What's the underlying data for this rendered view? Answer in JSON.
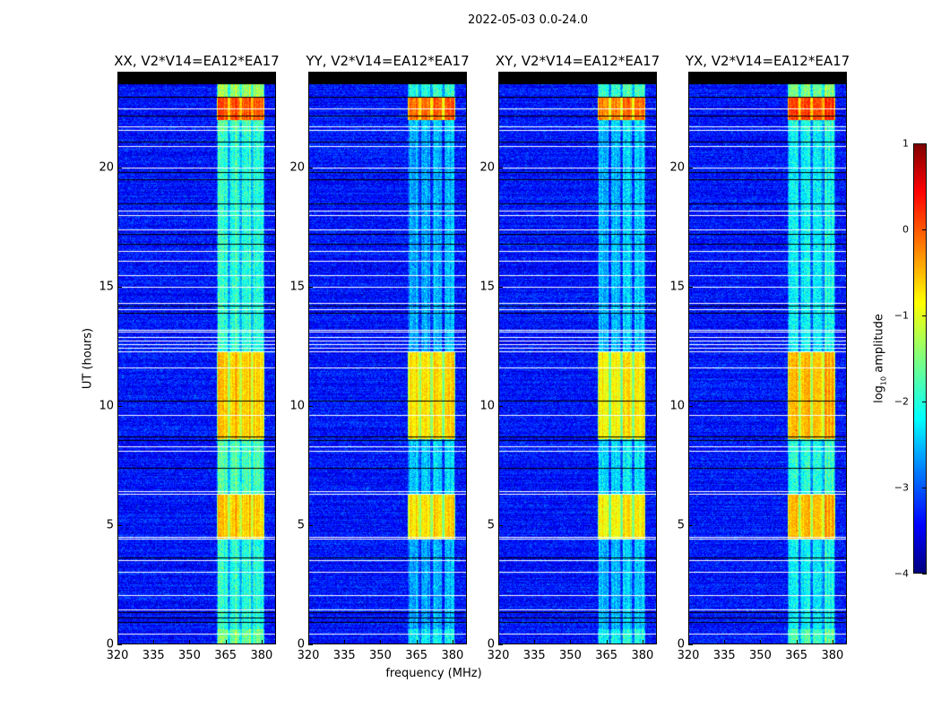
{
  "chart_data": {
    "type": "heatmap",
    "title": "2022-05-03 0.0-24.0",
    "xlabel": "frequency (MHz)",
    "ylabel": "UT (hours)",
    "xlim": [
      320,
      386
    ],
    "ylim": [
      0,
      24
    ],
    "xticks": [
      "320",
      "335",
      "350",
      "365",
      "380"
    ],
    "xtick_values": [
      320,
      335,
      350,
      365,
      380
    ],
    "yticks": [
      "0",
      "5",
      "10",
      "15",
      "20"
    ],
    "ytick_values": [
      0,
      5,
      10,
      15,
      20
    ],
    "colorbar": {
      "label_main": "log",
      "label_sub": "10",
      "label_rest": " amplitude",
      "range": [
        -4,
        1
      ],
      "ticks": [
        "1",
        "0",
        "−1",
        "−2",
        "−3",
        "−4"
      ],
      "tick_values": [
        1,
        0,
        -1,
        -2,
        -3,
        -4
      ],
      "colormap": "jet"
    },
    "background_level": -3.3,
    "subbands_mhz": [
      [
        361.5,
        366.5
      ],
      [
        366.5,
        371.5
      ],
      [
        371.5,
        376.5
      ],
      [
        376.5,
        381.5
      ]
    ],
    "time_segments": [
      {
        "start": 0,
        "end": 0.6,
        "band": -1.8,
        "strong": false
      },
      {
        "start": 0.6,
        "end": 4.4,
        "band": -2.2,
        "strong": false
      },
      {
        "start": 4.4,
        "end": 6.3,
        "band": -0.6,
        "strong": true
      },
      {
        "start": 6.3,
        "end": 8.6,
        "band": -2.0,
        "strong": false
      },
      {
        "start": 8.6,
        "end": 12.3,
        "band": -0.6,
        "strong": true
      },
      {
        "start": 12.3,
        "end": 21.5,
        "band": -2.2,
        "strong": false
      },
      {
        "start": 21.5,
        "end": 22.0,
        "band": -2.0,
        "strong": false
      },
      {
        "start": 22.0,
        "end": 23.0,
        "band": 0.0,
        "strong": true
      },
      {
        "start": 23.0,
        "end": 23.5,
        "band": -1.6,
        "strong": false
      }
    ],
    "masked_above_hour": 23.5,
    "white_flag_hours": [
      0.4,
      1.45,
      2.05,
      3.0,
      3.5,
      4.4,
      4.5,
      6.3,
      6.4,
      8.1,
      8.3,
      9.6,
      11.6,
      12.3,
      12.45,
      12.6,
      12.75,
      12.9,
      13.1,
      13.2,
      14.05,
      14.3,
      15.0,
      15.5,
      16.1,
      16.5,
      17.4,
      18.0,
      18.2,
      20.0,
      20.9,
      21.6,
      21.75,
      22.5
    ],
    "black_flag_hours": [
      0.9,
      1.1,
      1.3,
      3.6,
      7.4,
      8.55,
      8.7,
      10.2,
      13.9,
      14.2,
      16.8,
      17.2,
      18.5,
      19.5,
      19.8,
      21.1,
      22.2,
      23.0
    ],
    "panels": [
      {
        "title": "XX, V2*V14=EA12*EA17",
        "weak_offset": 0.3,
        "strong_offset": 0.0,
        "seed": 11
      },
      {
        "title": "YY, V2*V14=EA12*EA17",
        "weak_offset": -0.3,
        "strong_offset": -0.1,
        "seed": 23
      },
      {
        "title": "XY, V2*V14=EA12*EA17",
        "weak_offset": -0.2,
        "strong_offset": -0.2,
        "seed": 37
      },
      {
        "title": "YX, V2*V14=EA12*EA17",
        "weak_offset": 0.1,
        "strong_offset": 0.1,
        "seed": 53
      }
    ]
  }
}
